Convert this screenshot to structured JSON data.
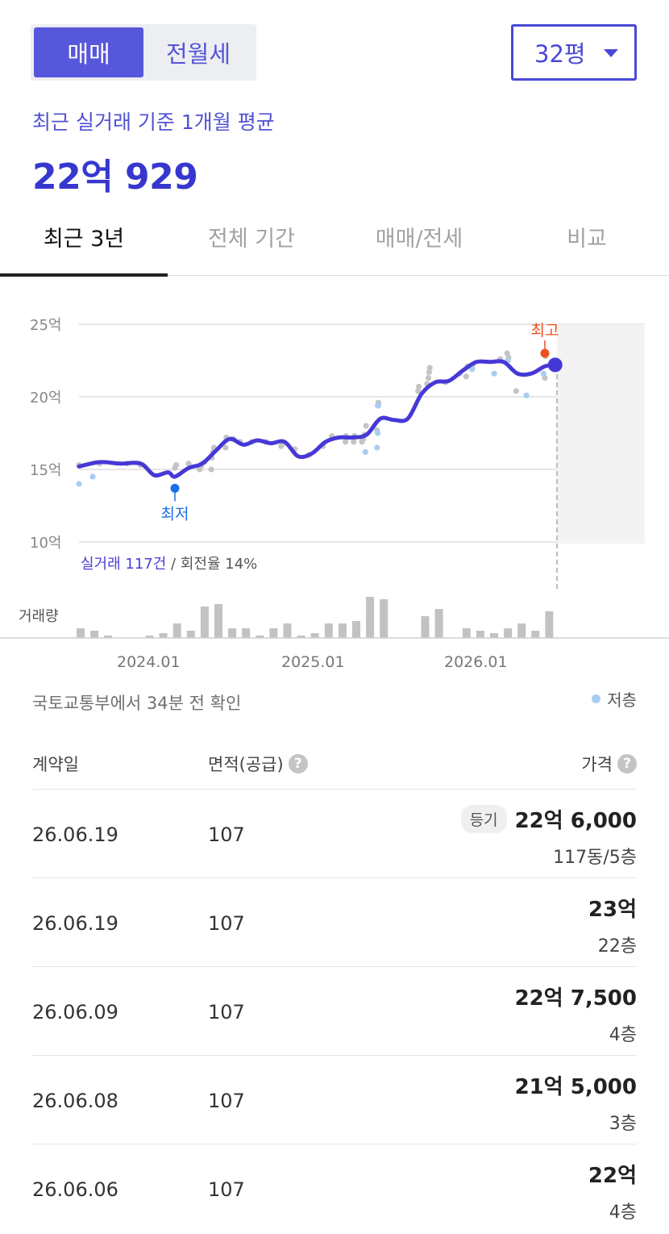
{
  "toggle": {
    "sale_label": "매매",
    "rent_label": "전월세"
  },
  "size_select": {
    "value": "32평"
  },
  "summary": {
    "label": "최근 실거래 기준 1개월 평균",
    "value": "22억 929"
  },
  "tabs": [
    {
      "label": "최근 3년",
      "active": true
    },
    {
      "label": "전체 기간",
      "active": false
    },
    {
      "label": "매매/전세",
      "active": false
    },
    {
      "label": "비교",
      "active": false
    }
  ],
  "chart": {
    "y_ticks": [
      "25억",
      "20억",
      "15억",
      "10억"
    ],
    "max_label": "최고",
    "min_label": "최저",
    "count_text": "실거래 117건",
    "turnover_text": " / 회전율 14%",
    "volume_label": "거래량",
    "x_ticks": [
      "2024.01",
      "2025.01",
      "2026.01"
    ]
  },
  "chart_data": {
    "type": "line",
    "ylim": [
      10,
      25
    ],
    "y_unit": "억",
    "trend": [
      [
        0,
        15.2
      ],
      [
        3,
        15.5
      ],
      [
        6,
        15.4
      ],
      [
        9,
        15.4
      ],
      [
        11,
        14.6
      ],
      [
        13,
        14.8
      ],
      [
        14,
        14.5
      ],
      [
        16,
        15.1
      ],
      [
        18,
        15.4
      ],
      [
        20,
        16.3
      ],
      [
        22,
        17.1
      ],
      [
        24,
        16.7
      ],
      [
        26,
        17.0
      ],
      [
        28,
        16.8
      ],
      [
        30,
        16.9
      ],
      [
        32,
        15.9
      ],
      [
        34,
        16.1
      ],
      [
        36,
        16.9
      ],
      [
        38,
        17.2
      ],
      [
        40,
        17.2
      ],
      [
        42,
        17.4
      ],
      [
        44,
        18.5
      ],
      [
        46,
        18.4
      ],
      [
        48,
        18.5
      ],
      [
        50,
        20.2
      ],
      [
        52,
        21.0
      ],
      [
        54,
        21.1
      ],
      [
        56,
        21.8
      ],
      [
        58,
        22.4
      ],
      [
        60,
        22.4
      ],
      [
        62,
        22.4
      ],
      [
        64,
        21.6
      ],
      [
        66,
        21.6
      ],
      [
        68,
        22.1
      ],
      [
        69.5,
        22.2
      ]
    ],
    "deals_gray": [
      [
        0,
        15.3
      ],
      [
        3,
        15.4
      ],
      [
        7,
        15.4
      ],
      [
        9,
        15.3
      ],
      [
        14,
        15.1
      ],
      [
        14.2,
        15.3
      ],
      [
        16,
        15.4
      ],
      [
        17.6,
        15.0
      ],
      [
        17.8,
        15.2
      ],
      [
        17.9,
        15.4
      ],
      [
        18.3,
        15.5
      ],
      [
        19.3,
        15.0
      ],
      [
        19.4,
        15.8
      ],
      [
        19.6,
        16.2
      ],
      [
        19.7,
        16.5
      ],
      [
        21.4,
        16.5
      ],
      [
        21.5,
        17.2
      ],
      [
        22.5,
        17.1
      ],
      [
        23.5,
        16.9
      ],
      [
        25.2,
        16.9
      ],
      [
        27.3,
        16.9
      ],
      [
        29.5,
        16.6
      ],
      [
        29.8,
        16.8
      ],
      [
        31.5,
        16.4
      ],
      [
        33.6,
        16.0
      ],
      [
        35.6,
        16.6
      ],
      [
        36.9,
        17.3
      ],
      [
        38.9,
        16.9
      ],
      [
        39.0,
        17.3
      ],
      [
        40.1,
        16.9
      ],
      [
        40.2,
        17.3
      ],
      [
        41.3,
        16.9
      ],
      [
        41.5,
        17.1
      ],
      [
        41.7,
        17.4
      ],
      [
        41.9,
        18.0
      ],
      [
        43.5,
        17.7
      ],
      [
        43.6,
        19.4
      ],
      [
        43.7,
        19.6
      ],
      [
        49.5,
        20.4
      ],
      [
        49.6,
        20.7
      ],
      [
        50.8,
        20.9
      ],
      [
        51.0,
        21.3
      ],
      [
        51.1,
        21.7
      ],
      [
        51.2,
        22.0
      ],
      [
        53.5,
        21.0
      ],
      [
        56.5,
        21.4
      ],
      [
        56.7,
        22.1
      ],
      [
        57.5,
        22.2
      ],
      [
        61.5,
        22.6
      ],
      [
        62.5,
        23.0
      ],
      [
        62.7,
        22.7
      ],
      [
        63.8,
        20.4
      ],
      [
        68.0,
        21.3
      ],
      [
        68.1,
        22.8
      ]
    ],
    "deals_low": [
      [
        0,
        14.0
      ],
      [
        2,
        14.5
      ],
      [
        41.8,
        16.2
      ],
      [
        43.5,
        16.5
      ],
      [
        43.6,
        17.5
      ],
      [
        43.7,
        19.4
      ],
      [
        55.6,
        21.6
      ],
      [
        57.4,
        21.9
      ],
      [
        60.6,
        21.6
      ],
      [
        62.6,
        22.5
      ],
      [
        65.3,
        20.1
      ],
      [
        67.8,
        21.6
      ]
    ],
    "max_point": [
      68.0,
      23.0
    ],
    "min_point": [
      14.0,
      13.7
    ],
    "current_point": [
      69.5,
      22.2
    ],
    "volume": [
      [
        0,
        4
      ],
      [
        1,
        3
      ],
      [
        2,
        1
      ],
      [
        5,
        1
      ],
      [
        6,
        2
      ],
      [
        7,
        6
      ],
      [
        8,
        3
      ],
      [
        9,
        13
      ],
      [
        10,
        14
      ],
      [
        11,
        4
      ],
      [
        12,
        4
      ],
      [
        13,
        1
      ],
      [
        14,
        4
      ],
      [
        15,
        6
      ],
      [
        16,
        1
      ],
      [
        17,
        2
      ],
      [
        18,
        6
      ],
      [
        19,
        6
      ],
      [
        20,
        7
      ],
      [
        21,
        17
      ],
      [
        22,
        16
      ],
      [
        25,
        9
      ],
      [
        26,
        12
      ],
      [
        28,
        4
      ],
      [
        29,
        3
      ],
      [
        30,
        2
      ],
      [
        31,
        4
      ],
      [
        32,
        6
      ],
      [
        33,
        3
      ],
      [
        34,
        11
      ]
    ]
  },
  "source_text": "국토교통부에서 34분 전 확인",
  "legend": {
    "low_floor": "저층"
  },
  "table": {
    "headers": {
      "date": "계약일",
      "area": "면적(공급)",
      "price": "가격"
    },
    "help_glyph": "?",
    "rows": [
      {
        "date": "26.06.19",
        "area": "107",
        "badge": "등기",
        "price": "22억 6,000",
        "floor": "117동/5층"
      },
      {
        "date": "26.06.19",
        "area": "107",
        "badge": "",
        "price": "23억",
        "floor": "22층"
      },
      {
        "date": "26.06.09",
        "area": "107",
        "badge": "",
        "price": "22억 7,500",
        "floor": "4층"
      },
      {
        "date": "26.06.08",
        "area": "107",
        "badge": "",
        "price": "21억 5,000",
        "floor": "3층"
      },
      {
        "date": "26.06.06",
        "area": "107",
        "badge": "",
        "price": "22억",
        "floor": "4층"
      }
    ]
  }
}
